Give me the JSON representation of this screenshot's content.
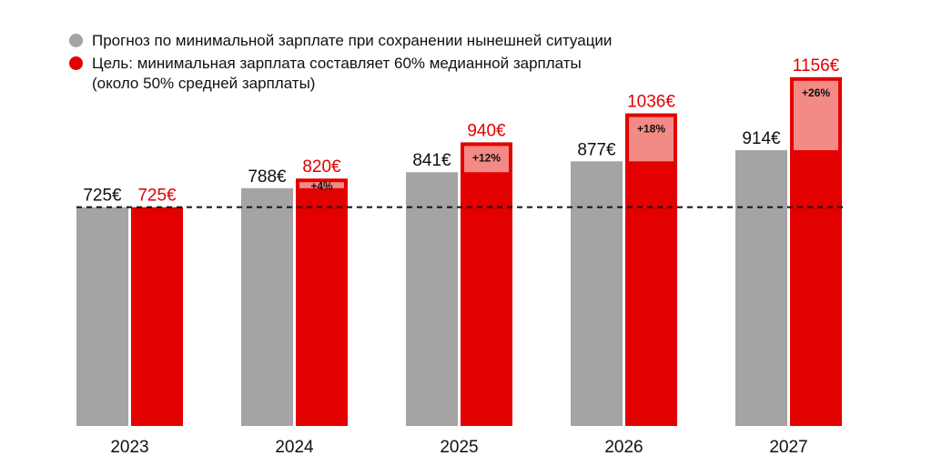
{
  "legend": {
    "forecast_label": "Прогноз по минимальной зарплате при сохранении нынешней ситуации",
    "target_label": "Цель: минимальная зарплата составляет 60% медианной зарплаты\n(около 50% средней зарплаты)"
  },
  "colors": {
    "forecast": "#a5a4a4",
    "target": "#e20000",
    "increase_box": "#f28a85",
    "target_text": "#e20000"
  },
  "chart_data": {
    "type": "bar",
    "categories": [
      "2023",
      "2024",
      "2025",
      "2026",
      "2027"
    ],
    "series": [
      {
        "name": "Прогноз по минимальной зарплате при сохранении нынешней ситуации",
        "values": [
          725,
          788,
          841,
          877,
          914
        ],
        "labels": [
          "725€",
          "788€",
          "841€",
          "877€",
          "914€"
        ]
      },
      {
        "name": "Цель: минимальная зарплата составляет 60% медианной зарплаты (около 50% средней зарплаты)",
        "values": [
          725,
          820,
          940,
          1036,
          1156
        ],
        "labels": [
          "725€",
          "820€",
          "940€",
          "1036€",
          "1156€"
        ]
      }
    ],
    "increase_labels": [
      "",
      "+4%",
      "+12%",
      "+18%",
      "+26%"
    ],
    "reference_line": 725,
    "grid": false,
    "legend_position": "top-left"
  }
}
